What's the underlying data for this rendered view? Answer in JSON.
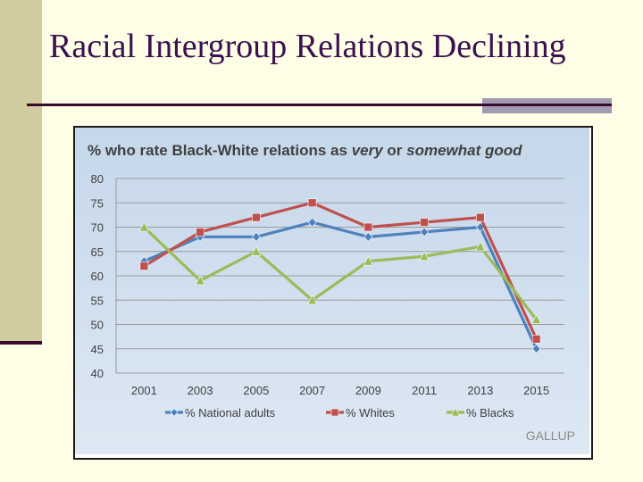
{
  "slide": {
    "title": "Racial Intergroup Relations Declining"
  },
  "chart_data": {
    "type": "line",
    "title_parts": [
      {
        "text": "% who rate Black-White relations as ",
        "italic": false
      },
      {
        "text": "very",
        "italic": true
      },
      {
        "text": " or ",
        "italic": false
      },
      {
        "text": "somewhat good",
        "italic": true
      }
    ],
    "categories": [
      "2001",
      "2003",
      "2005",
      "2007",
      "2009",
      "2011",
      "2013",
      "2015"
    ],
    "ylim": [
      40,
      80
    ],
    "yticks": [
      40,
      45,
      50,
      55,
      60,
      65,
      70,
      75,
      80
    ],
    "grid": true,
    "legend_position": "bottom",
    "series": [
      {
        "name": "% National adults",
        "color": "#4f81bd",
        "marker": "diamond",
        "values": [
          63,
          68,
          68,
          71,
          68,
          69,
          70,
          45
        ]
      },
      {
        "name": "% Whites",
        "color": "#c0504d",
        "marker": "square",
        "values": [
          62,
          69,
          72,
          75,
          70,
          71,
          72,
          47
        ]
      },
      {
        "name": "% Blacks",
        "color": "#9bbb59",
        "marker": "triangle",
        "values": [
          70,
          59,
          65,
          55,
          63,
          64,
          66,
          51
        ]
      }
    ],
    "source": "GALLUP"
  }
}
